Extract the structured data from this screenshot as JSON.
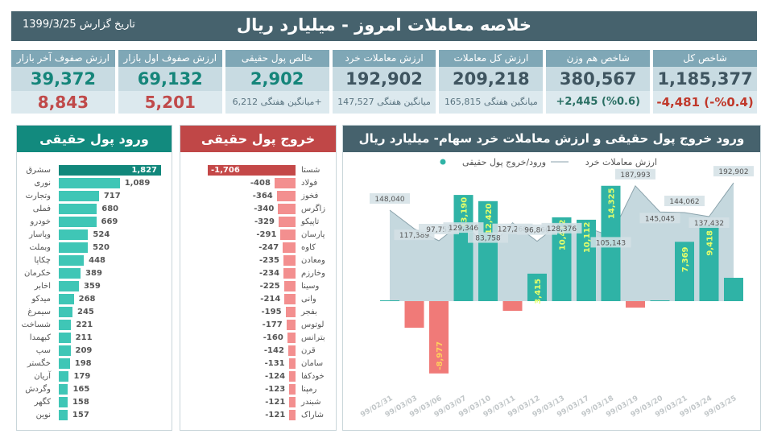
{
  "header": {
    "title": "خلاصه معاملات امروز - میلیارد ریال",
    "date": "تاریخ گزارش 1399/3/25"
  },
  "cards": [
    {
      "title": "شاخص کل",
      "value": "1,185,377",
      "sub": "-4,481 (-%0.4)",
      "style": "red"
    },
    {
      "title": "شاخص هم وزن",
      "value": "380,567",
      "sub": "+2,445 (%0.6)",
      "style": "pos"
    },
    {
      "title": "ارزش کل معاملات",
      "value": "209,218",
      "sub": "میانگین هفتگی 165,815",
      "style": "avg"
    },
    {
      "title": "ارزش معاملات خرد",
      "value": "192,902",
      "sub": "میانگین هفتگی 147,527",
      "style": "avg"
    },
    {
      "title": "خالص پول حقیقی",
      "value": "2,902",
      "sub": "میانگین هفتگی 6,212+",
      "style": "avg",
      "green": true
    },
    {
      "title": "ارزش صفوف اول بازار",
      "value": "69,132",
      "sub": "5,201",
      "style": "big",
      "green": true
    },
    {
      "title": "ارزش صفوف آخر بازار",
      "value": "39,372",
      "sub": "8,843",
      "style": "big",
      "green": true
    }
  ],
  "inflow": {
    "title": "ورود پول حقیقی",
    "color": "#3fc6b6",
    "top_color": "#11877b",
    "items": [
      {
        "name": "سشرق",
        "value": "1,827"
      },
      {
        "name": "نوری",
        "value": "1,089"
      },
      {
        "name": "وتجارت",
        "value": "717"
      },
      {
        "name": "فملی",
        "value": "680"
      },
      {
        "name": "خودرو",
        "value": "669"
      },
      {
        "name": "وپاسار",
        "value": "524"
      },
      {
        "name": "وبملت",
        "value": "520"
      },
      {
        "name": "چکاپا",
        "value": "448"
      },
      {
        "name": "خکرمان",
        "value": "389"
      },
      {
        "name": "اخابر",
        "value": "359"
      },
      {
        "name": "میدکو",
        "value": "268"
      },
      {
        "name": "سیمرغ",
        "value": "245"
      },
      {
        "name": "شساخت",
        "value": "221"
      },
      {
        "name": "کبهمدا",
        "value": "211"
      },
      {
        "name": "سپ",
        "value": "209"
      },
      {
        "name": "خگستر",
        "value": "198"
      },
      {
        "name": "آریان",
        "value": "179"
      },
      {
        "name": "وگردش",
        "value": "165"
      },
      {
        "name": "کگهر",
        "value": "158"
      },
      {
        "name": "نوین",
        "value": "157"
      }
    ]
  },
  "outflow": {
    "title": "خروج پول حقیقی",
    "color": "#f38f8f",
    "top_color": "#c44848",
    "items": [
      {
        "name": "شستا",
        "value": "-1,706"
      },
      {
        "name": "فولاد",
        "value": "-408"
      },
      {
        "name": "فخوز",
        "value": "-364"
      },
      {
        "name": "زاگرس",
        "value": "-340"
      },
      {
        "name": "تاپیکو",
        "value": "-329"
      },
      {
        "name": "پارسان",
        "value": "-291"
      },
      {
        "name": "کاوه",
        "value": "-247"
      },
      {
        "name": "ومعادن",
        "value": "-235"
      },
      {
        "name": "وخارزم",
        "value": "-234"
      },
      {
        "name": "وسینا",
        "value": "-225"
      },
      {
        "name": "وانی",
        "value": "-214"
      },
      {
        "name": "بفجر",
        "value": "-195"
      },
      {
        "name": "لوتوس",
        "value": "-177"
      },
      {
        "name": "بترانس",
        "value": "-160"
      },
      {
        "name": "قرن",
        "value": "-142"
      },
      {
        "name": "سامان",
        "value": "-131"
      },
      {
        "name": "خودکفا",
        "value": "-124"
      },
      {
        "name": "رمپنا",
        "value": "-123"
      },
      {
        "name": "شبندر",
        "value": "-121"
      },
      {
        "name": "شاراک",
        "value": "-121"
      }
    ]
  },
  "chart_data": {
    "type": "bar+area",
    "title": "ورود خروج پول حقیقی و ارزش معاملات خرد سهام- میلیارد ریال",
    "legend": {
      "line": "ارزش معاملات خرد",
      "bar": "ورود/خروج پول حقیقی",
      "placement": "top"
    },
    "categories": [
      "99/02/31",
      "99/03/03",
      "99/03/06",
      "99/03/07",
      "99/03/10",
      "99/03/11",
      "99/03/12",
      "99/03/13",
      "99/03/17",
      "99/03/18",
      "99/03/19",
      "99/03/20",
      "99/03/21",
      "99/03/24",
      "99/03/25"
    ],
    "bars": [
      100,
      -3300,
      -8977,
      13190,
      12420,
      -1200,
      3415,
      10412,
      10112,
      14325,
      -800,
      100,
      7369,
      9418,
      2902
    ],
    "bar_labels": [
      "",
      "",
      "-8,977",
      "13,190",
      "12,420",
      "",
      "3,415",
      "10,412",
      "10,112",
      "14,325",
      "",
      "",
      "7,369",
      "9,418",
      ""
    ],
    "line": [
      148040,
      117389,
      97751,
      129346,
      83758,
      127268,
      96866,
      128376,
      120000,
      105143,
      187993,
      145045,
      144062,
      137432,
      192902
    ],
    "line_labels": [
      "148,040",
      "117,389",
      "97,751",
      "129,346",
      "83,758",
      "127,268",
      "96,866",
      "128,376",
      "",
      "105,143",
      "187,993",
      "145,045",
      "144,062",
      "137,432",
      "192,902"
    ],
    "colors": {
      "positive": "#2fb3a6",
      "negative": "#f07a78",
      "area": "#c5d8de",
      "line": "#8aa2ab"
    }
  }
}
